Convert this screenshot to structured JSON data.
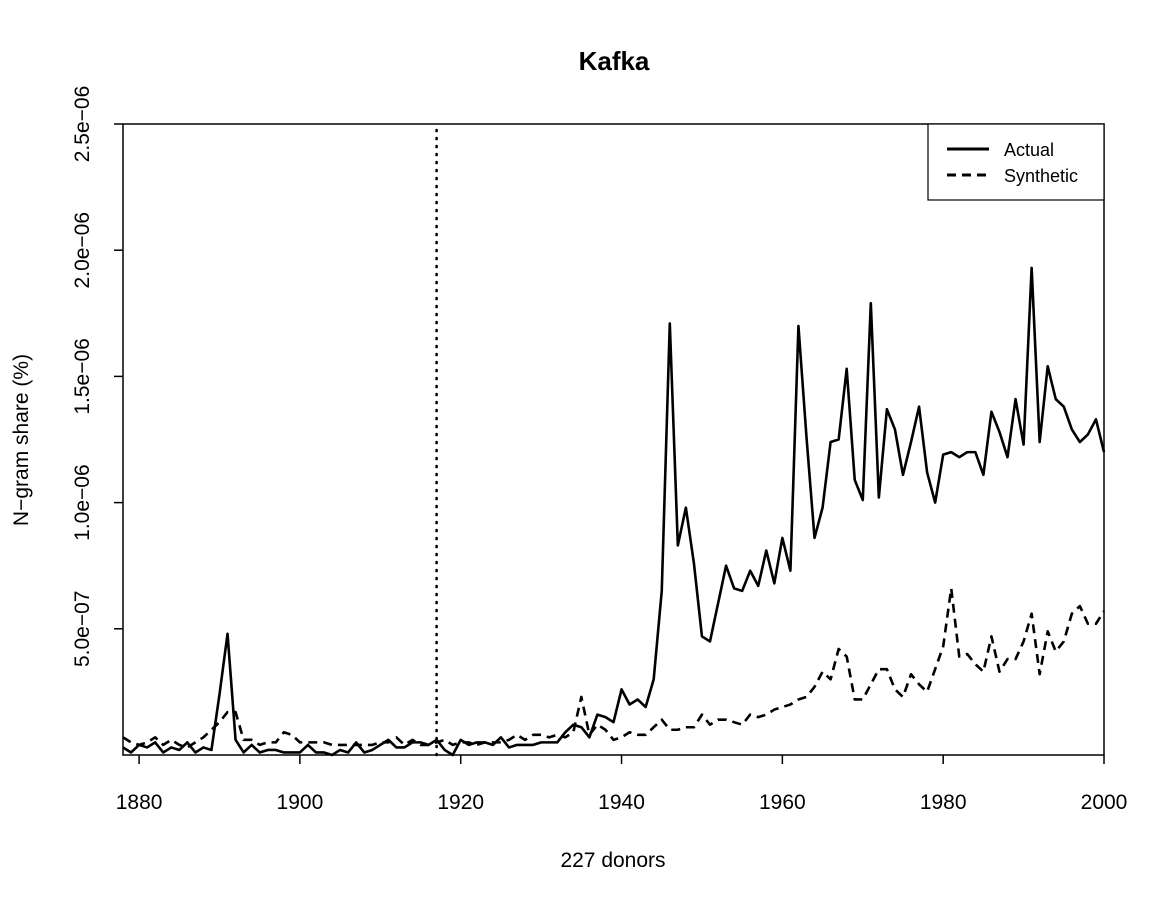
{
  "chart_data": {
    "type": "line",
    "title": "Kafka",
    "xlabel": "227 donors",
    "ylabel": "N−gram share (%)",
    "xlim": [
      1878,
      2000
    ],
    "ylim": [
      0,
      2.5e-06
    ],
    "x_ticks": [
      1880,
      1900,
      1920,
      1940,
      1960,
      1980,
      2000
    ],
    "x_tick_labels": [
      "1880",
      "1900",
      "1920",
      "1940",
      "1960",
      "1980",
      "2000"
    ],
    "y_ticks": [
      5e-07,
      1e-06,
      1.5e-06,
      2e-06,
      2.5e-06
    ],
    "y_tick_labels": [
      "5.0e−07",
      "1.0e−06",
      "1.5e−06",
      "2.0e−06",
      "2.5e−06"
    ],
    "vline_x": 1917,
    "legend_position": "top-right",
    "grid": false,
    "series": [
      {
        "name": "Actual",
        "style": "solid",
        "x": [
          1878,
          1879,
          1880,
          1881,
          1882,
          1883,
          1884,
          1885,
          1886,
          1887,
          1888,
          1889,
          1890,
          1891,
          1892,
          1893,
          1894,
          1895,
          1896,
          1897,
          1898,
          1899,
          1900,
          1901,
          1902,
          1903,
          1904,
          1905,
          1906,
          1907,
          1908,
          1909,
          1910,
          1911,
          1912,
          1913,
          1914,
          1915,
          1916,
          1917,
          1918,
          1919,
          1920,
          1921,
          1922,
          1923,
          1924,
          1925,
          1926,
          1927,
          1928,
          1929,
          1930,
          1931,
          1932,
          1933,
          1934,
          1935,
          1936,
          1937,
          1938,
          1939,
          1940,
          1941,
          1942,
          1943,
          1944,
          1945,
          1946,
          1947,
          1948,
          1949,
          1950,
          1951,
          1952,
          1953,
          1954,
          1955,
          1956,
          1957,
          1958,
          1959,
          1960,
          1961,
          1962,
          1963,
          1964,
          1965,
          1966,
          1967,
          1968,
          1969,
          1970,
          1971,
          1972,
          1973,
          1974,
          1975,
          1976,
          1977,
          1978,
          1979,
          1980,
          1981,
          1982,
          1983,
          1984,
          1985,
          1986,
          1987,
          1988,
          1989,
          1990,
          1991,
          1992,
          1993,
          1994,
          1995,
          1996,
          1997,
          1998,
          1999,
          2000
        ],
        "values": [
          3e-08,
          1e-08,
          4e-08,
          3e-08,
          5e-08,
          1e-08,
          3e-08,
          2e-08,
          5e-08,
          1e-08,
          3e-08,
          2e-08,
          2.4e-07,
          4.8e-07,
          6e-08,
          1e-08,
          4e-08,
          1e-08,
          2e-08,
          2e-08,
          1e-08,
          1e-08,
          1e-08,
          4e-08,
          1e-08,
          1e-08,
          0,
          2e-08,
          1e-08,
          5e-08,
          1e-08,
          2e-08,
          4e-08,
          6e-08,
          3e-08,
          3e-08,
          5e-08,
          5e-08,
          4e-08,
          6e-08,
          2e-08,
          0,
          6e-08,
          4e-08,
          5e-08,
          5e-08,
          4e-08,
          7e-08,
          3e-08,
          4e-08,
          4e-08,
          4e-08,
          5e-08,
          5e-08,
          5e-08,
          9e-08,
          1.2e-07,
          1.1e-07,
          7e-08,
          1.6e-07,
          1.5e-07,
          1.3e-07,
          2.6e-07,
          2e-07,
          2.2e-07,
          1.9e-07,
          3e-07,
          6.5e-07,
          1.71e-06,
          8.3e-07,
          9.8e-07,
          7.6e-07,
          4.7e-07,
          4.5e-07,
          6e-07,
          7.5e-07,
          6.6e-07,
          6.5e-07,
          7.3e-07,
          6.7e-07,
          8.1e-07,
          6.8e-07,
          8.6e-07,
          7.3e-07,
          1.7e-06,
          1.26e-06,
          8.6e-07,
          9.8e-07,
          1.24e-06,
          1.25e-06,
          1.53e-06,
          1.09e-06,
          1.01e-06,
          1.79e-06,
          1.02e-06,
          1.37e-06,
          1.29e-06,
          1.11e-06,
          1.24e-06,
          1.38e-06,
          1.12e-06,
          1e-06,
          1.19e-06,
          1.2e-06,
          1.18e-06,
          1.2e-06,
          1.2e-06,
          1.11e-06,
          1.36e-06,
          1.28e-06,
          1.18e-06,
          1.41e-06,
          1.23e-06,
          1.93e-06,
          1.24e-06,
          1.54e-06,
          1.41e-06,
          1.38e-06,
          1.29e-06,
          1.24e-06,
          1.27e-06,
          1.33e-06,
          1.2e-06
        ]
      },
      {
        "name": "Synthetic",
        "style": "dashed",
        "x": [
          1878,
          1879,
          1880,
          1881,
          1882,
          1883,
          1884,
          1885,
          1886,
          1887,
          1888,
          1889,
          1890,
          1891,
          1892,
          1893,
          1894,
          1895,
          1896,
          1897,
          1898,
          1899,
          1900,
          1901,
          1902,
          1903,
          1904,
          1905,
          1906,
          1907,
          1908,
          1909,
          1910,
          1911,
          1912,
          1913,
          1914,
          1915,
          1916,
          1917,
          1918,
          1919,
          1920,
          1921,
          1922,
          1923,
          1924,
          1925,
          1926,
          1927,
          1928,
          1929,
          1930,
          1931,
          1932,
          1933,
          1934,
          1935,
          1936,
          1937,
          1938,
          1939,
          1940,
          1941,
          1942,
          1943,
          1944,
          1945,
          1946,
          1947,
          1948,
          1949,
          1950,
          1951,
          1952,
          1953,
          1954,
          1955,
          1956,
          1957,
          1958,
          1959,
          1960,
          1961,
          1962,
          1963,
          1964,
          1965,
          1966,
          1967,
          1968,
          1969,
          1970,
          1971,
          1972,
          1973,
          1974,
          1975,
          1976,
          1977,
          1978,
          1979,
          1980,
          1981,
          1982,
          1983,
          1984,
          1985,
          1986,
          1987,
          1988,
          1989,
          1990,
          1991,
          1992,
          1993,
          1994,
          1995,
          1996,
          1997,
          1998,
          1999,
          2000
        ],
        "values": [
          7e-08,
          5e-08,
          4e-08,
          5e-08,
          7e-08,
          4e-08,
          6e-08,
          4e-08,
          3e-08,
          5e-08,
          7e-08,
          1e-07,
          1.3e-07,
          1.7e-07,
          1.7e-07,
          6e-08,
          6e-08,
          4e-08,
          5e-08,
          5e-08,
          9e-08,
          8e-08,
          5e-08,
          5e-08,
          5e-08,
          5e-08,
          4e-08,
          4e-08,
          4e-08,
          4e-08,
          4e-08,
          4e-08,
          5e-08,
          5e-08,
          7e-08,
          4e-08,
          6e-08,
          4e-08,
          4e-08,
          5e-08,
          6e-08,
          4e-08,
          5e-08,
          5e-08,
          4e-08,
          5e-08,
          5e-08,
          5e-08,
          6e-08,
          8e-08,
          6e-08,
          8e-08,
          8e-08,
          7e-08,
          8e-08,
          7e-08,
          9e-08,
          2.3e-07,
          8e-08,
          1.2e-07,
          1e-07,
          6e-08,
          7e-08,
          9e-08,
          8e-08,
          8e-08,
          1.1e-07,
          1.4e-07,
          1e-07,
          1e-07,
          1.1e-07,
          1.1e-07,
          1.6e-07,
          1.2e-07,
          1.4e-07,
          1.4e-07,
          1.3e-07,
          1.2e-07,
          1.6e-07,
          1.5e-07,
          1.6e-07,
          1.8e-07,
          1.9e-07,
          2e-07,
          2.2e-07,
          2.3e-07,
          2.7e-07,
          3.3e-07,
          3e-07,
          4.2e-07,
          3.9e-07,
          2.2e-07,
          2.2e-07,
          2.8e-07,
          3.4e-07,
          3.4e-07,
          2.6e-07,
          2.3e-07,
          3.2e-07,
          2.8e-07,
          2.5e-07,
          3.4e-07,
          4.3e-07,
          6.6e-07,
          3.9e-07,
          4e-07,
          3.6e-07,
          3.3e-07,
          4.7e-07,
          3.3e-07,
          3.8e-07,
          3.8e-07,
          4.5e-07,
          5.6e-07,
          3.2e-07,
          4.9e-07,
          4.1e-07,
          4.5e-07,
          5.6e-07,
          5.9e-07,
          5.2e-07,
          5.2e-07,
          5.7e-07
        ]
      }
    ]
  }
}
